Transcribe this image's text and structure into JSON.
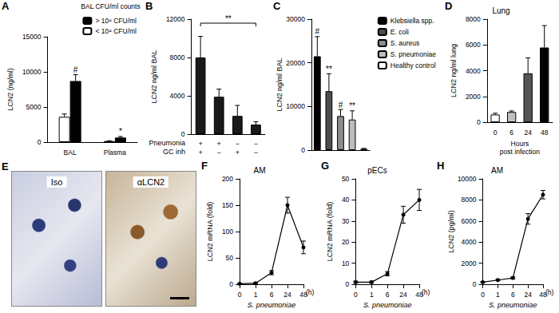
{
  "chart_data": [
    {
      "panel_label": "A",
      "type": "bar",
      "y_label": "LCN2 (ng/ml)",
      "legend_title": "BAL CFU/ml counts",
      "legend": "upper right",
      "categories": [
        "BAL",
        "Plasma"
      ],
      "series": [
        {
          "name": "> 10⁴ CFU/ml",
          "color": "#000000",
          "values": [
            8700,
            650
          ],
          "errors": [
            900,
            150
          ],
          "annotations": [
            "#",
            "*"
          ]
        },
        {
          "name": "< 10⁴ CFU/ml",
          "color": "#ffffff",
          "values": [
            3600,
            150
          ],
          "errors": [
            400,
            50
          ],
          "annotations": [
            null,
            null
          ]
        }
      ],
      "ylim": [
        0,
        15000
      ],
      "yticks": [
        0,
        5000,
        10000,
        15000
      ]
    },
    {
      "panel_label": "B",
      "type": "bar",
      "y_label": "LCN2 ng/ml BAL",
      "condition_rows": [
        {
          "label": "Pneumonia",
          "values": [
            "+",
            "+",
            "−",
            "−"
          ]
        },
        {
          "label": "GC inh",
          "values": [
            "+",
            "−",
            "+",
            "−"
          ]
        }
      ],
      "values": [
        8000,
        3900,
        1900,
        1000
      ],
      "errors": [
        2200,
        800,
        1100,
        300
      ],
      "color": "#1a1a1a",
      "bracket": {
        "label": "**",
        "from": 0,
        "to": 3
      },
      "ylim": [
        0,
        12000
      ],
      "yticks": [
        0,
        4000,
        8000,
        12000
      ]
    },
    {
      "panel_label": "C",
      "type": "bar",
      "y_label": "LCN2 ng/ml BAL",
      "legend": "upper right",
      "tick_labels": "y",
      "categories": [
        "Klebsiella spp.",
        "E. coli",
        "S. aureus",
        "S. pneumoniae",
        "Healthy control"
      ],
      "values": [
        21500,
        13500,
        7800,
        7000,
        300
      ],
      "errors": [
        4500,
        4000,
        1500,
        2000,
        100
      ],
      "colors": [
        "#000000",
        "#4d4d4d",
        "#8c8c8c",
        "#bdbdbd",
        "#ffffff"
      ],
      "annotations": [
        "#",
        "**",
        "#",
        "**",
        null
      ],
      "ylim": [
        0,
        30000
      ],
      "yticks": [
        0,
        10000,
        20000,
        30000
      ]
    },
    {
      "panel_label": "D",
      "type": "bar",
      "title": "Lung",
      "y_label": "LCN2 ng/ml lung",
      "x_label": "Hours\npost infection",
      "categories": [
        "0",
        "6",
        "24",
        "48"
      ],
      "values": [
        600,
        800,
        3800,
        5800
      ],
      "errors": [
        100,
        80,
        1200,
        1700
      ],
      "colors": [
        "#ffffff",
        "#bfbfbf",
        "#555555",
        "#000000"
      ],
      "ylim": [
        0,
        8000
      ],
      "yticks": [
        0,
        2000,
        4000,
        6000,
        8000
      ]
    },
    {
      "panel_label": "E",
      "type": "image",
      "images": [
        "Iso",
        "αLCN2"
      ]
    },
    {
      "panel_label": "F",
      "type": "line",
      "title": "AM",
      "y_label": "LCN2 mRNA (fold)",
      "x_label": "S. pneumoniae",
      "x_unit": "(h)",
      "categories": [
        "0",
        "1",
        "6",
        "24",
        "48"
      ],
      "values": [
        1,
        2,
        22,
        150,
        70
      ],
      "errors": [
        1,
        1,
        4,
        15,
        12
      ],
      "color": "#000000",
      "marker": "circle",
      "ylim": [
        0,
        200
      ],
      "yticks": [
        0,
        50,
        100,
        150,
        200
      ]
    },
    {
      "panel_label": "G",
      "type": "line",
      "title": "pECs",
      "y_label": "LCN2 mRNA (fold)",
      "x_label": "S. pneumoniae",
      "x_unit": "(h)",
      "categories": [
        "0",
        "1",
        "6",
        "24",
        "48"
      ],
      "values": [
        1,
        1,
        5,
        33,
        40
      ],
      "errors": [
        0.5,
        0.5,
        1,
        4,
        5
      ],
      "color": "#000000",
      "marker": "circle",
      "ylim": [
        0,
        50
      ],
      "yticks": [
        0,
        10,
        20,
        30,
        40,
        50
      ]
    },
    {
      "panel_label": "H",
      "type": "line",
      "title": "AM",
      "y_label": "LCN2 (pg/ml)",
      "x_label": "S. pneumoniae",
      "x_unit": "(h)",
      "categories": [
        "0",
        "1",
        "6",
        "24",
        "48"
      ],
      "values": [
        200,
        400,
        600,
        6200,
        8500
      ],
      "errors": [
        50,
        50,
        100,
        500,
        400
      ],
      "color": "#000000",
      "marker": "circle",
      "ylim": [
        0,
        10000
      ],
      "yticks": [
        0,
        2000,
        4000,
        6000,
        8000,
        10000
      ]
    }
  ]
}
